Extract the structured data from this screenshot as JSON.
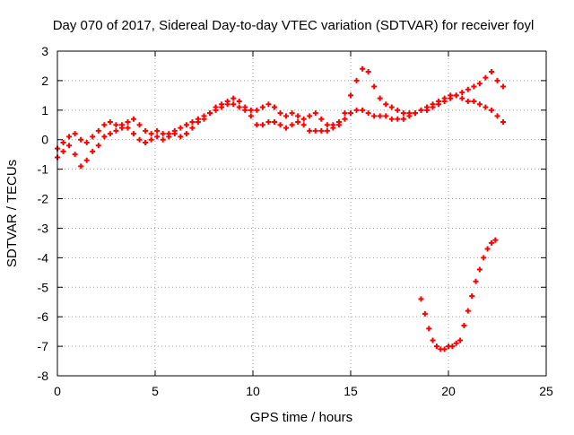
{
  "chart_data": {
    "type": "scatter",
    "title": "Day 070 of 2017, Sidereal Day-to-day VTEC variation (SDTVAR) for receiver foyl",
    "xlabel": "GPS time / hours",
    "ylabel": "SDTVAR / TECUs",
    "xlim": [
      0,
      25
    ],
    "ylim": [
      -8,
      3
    ],
    "xticks": [
      0,
      5,
      10,
      15,
      20,
      25
    ],
    "yticks": [
      -8,
      -7,
      -6,
      -5,
      -4,
      -3,
      -2,
      -1,
      0,
      1,
      2,
      3
    ],
    "xtick_labels": [
      "0",
      "5",
      "10",
      "15",
      "20",
      "25"
    ],
    "ytick_labels": [
      "-8",
      "-7",
      "-6",
      "-5",
      "-4",
      "-3",
      "-2",
      "-1",
      "0",
      "1",
      "2",
      "3"
    ],
    "grid": true,
    "legend": "none",
    "marker": "plus",
    "series": [
      {
        "color": "#ff0000",
        "x": [
          0.0,
          0.3,
          0.6,
          0.9,
          1.2,
          1.5,
          1.8,
          2.1,
          2.4,
          2.7,
          3.0,
          3.3,
          3.6,
          3.9,
          4.2,
          4.5,
          4.8,
          5.1,
          5.4,
          5.7,
          6.0,
          6.3,
          6.6,
          6.9,
          7.2,
          7.5,
          7.8,
          8.1,
          8.4,
          8.7,
          9.0,
          9.3,
          9.6,
          9.9,
          10.2,
          10.5,
          10.8,
          11.1,
          11.4,
          11.7,
          12.0,
          12.3,
          12.6,
          12.9,
          13.2,
          13.5,
          13.8,
          14.1,
          14.4,
          14.7,
          15.0,
          15.3,
          15.6,
          15.9,
          16.2,
          16.5,
          16.8,
          17.1,
          17.4,
          17.7,
          18.0,
          18.3,
          18.6,
          18.9,
          19.2,
          19.5,
          19.8,
          20.1,
          20.4,
          20.7,
          21.0,
          21.3,
          21.6,
          21.9,
          22.2,
          22.5,
          22.8
        ],
        "y": [
          -0.3,
          -0.1,
          0.1,
          0.2,
          0.0,
          -0.1,
          0.1,
          0.3,
          0.5,
          0.6,
          0.5,
          0.4,
          0.6,
          0.7,
          0.5,
          0.3,
          0.2,
          0.3,
          0.2,
          0.2,
          0.3,
          0.4,
          0.5,
          0.6,
          0.7,
          0.8,
          0.9,
          1.1,
          1.2,
          1.3,
          1.4,
          1.3,
          1.1,
          1.0,
          1.0,
          1.1,
          1.2,
          1.1,
          0.9,
          0.8,
          0.9,
          0.8,
          0.7,
          0.8,
          0.9,
          0.7,
          0.5,
          0.5,
          0.6,
          0.9,
          1.5,
          2.0,
          2.4,
          2.3,
          1.8,
          1.4,
          1.2,
          1.1,
          1.0,
          0.9,
          0.9,
          0.9,
          1.0,
          1.0,
          1.1,
          1.2,
          1.3,
          1.4,
          1.5,
          1.6,
          1.7,
          1.8,
          1.9,
          2.1,
          2.3,
          2.0,
          1.8
        ]
      },
      {
        "color": "#ff0000",
        "x": [
          0.0,
          0.3,
          0.6,
          0.9,
          1.2,
          1.5,
          1.8,
          2.1,
          2.4,
          2.7,
          3.0,
          3.3,
          3.6,
          3.9,
          4.2,
          4.5,
          4.8,
          5.1,
          5.4,
          5.7,
          6.0,
          6.3,
          6.6,
          6.9,
          7.2,
          7.5,
          7.8,
          8.1,
          8.4,
          8.7,
          9.0,
          9.3,
          9.6,
          9.9,
          10.2,
          10.5,
          10.8,
          11.1,
          11.4,
          11.7,
          12.0,
          12.3,
          12.6,
          12.9,
          13.2,
          13.5,
          13.8,
          14.1,
          14.4,
          14.7,
          15.0,
          15.3,
          15.6,
          15.9,
          16.2,
          16.5,
          16.8,
          17.1,
          17.4,
          17.7,
          18.0,
          18.3,
          18.6,
          18.9,
          19.2,
          19.5,
          19.8,
          20.1,
          20.4,
          20.7,
          21.0,
          21.3,
          21.6,
          21.9,
          22.2,
          22.5,
          22.8
        ],
        "y": [
          -0.6,
          -0.4,
          -0.2,
          -0.5,
          -0.9,
          -0.7,
          -0.4,
          -0.2,
          0.1,
          0.2,
          0.3,
          0.5,
          0.4,
          0.2,
          0.0,
          -0.1,
          0.0,
          0.1,
          0.0,
          0.1,
          0.2,
          0.1,
          0.2,
          0.4,
          0.6,
          0.7,
          0.9,
          1.0,
          1.1,
          1.2,
          1.2,
          1.1,
          1.0,
          0.8,
          0.5,
          0.5,
          0.6,
          0.6,
          0.5,
          0.4,
          0.5,
          0.6,
          0.5,
          0.3,
          0.3,
          0.3,
          0.3,
          0.4,
          0.5,
          0.7,
          0.9,
          1.0,
          1.0,
          0.9,
          0.8,
          0.8,
          0.8,
          0.7,
          0.7,
          0.7,
          0.8,
          0.9,
          1.0,
          1.1,
          1.2,
          1.3,
          1.4,
          1.5,
          1.5,
          1.4,
          1.3,
          1.3,
          1.2,
          1.1,
          1.0,
          0.8,
          0.6
        ]
      },
      {
        "color": "#ff0000",
        "x": [
          18.6,
          18.8,
          19.0,
          19.2,
          19.4,
          19.6,
          19.8,
          20.0,
          20.2,
          20.4,
          20.6,
          20.8,
          21.0,
          21.2,
          21.4,
          21.6,
          21.8,
          22.0,
          22.2,
          22.4
        ],
        "y": [
          -5.4,
          -5.9,
          -6.4,
          -6.8,
          -7.0,
          -7.1,
          -7.1,
          -7.0,
          -7.0,
          -6.9,
          -6.8,
          -6.3,
          -5.8,
          -5.3,
          -4.8,
          -4.4,
          -4.0,
          -3.7,
          -3.5,
          -3.4
        ]
      }
    ]
  }
}
